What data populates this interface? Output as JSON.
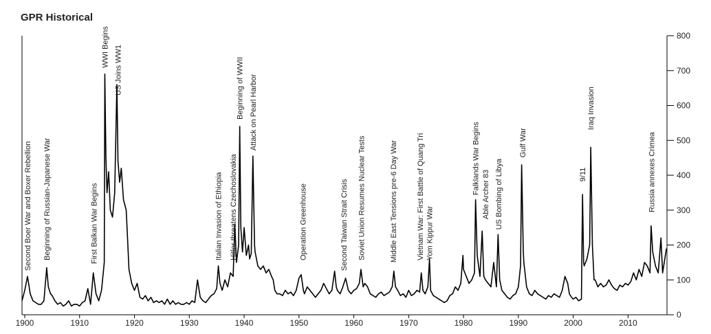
{
  "chart_data": {
    "type": "line",
    "title": "GPR Historical",
    "color": "#000000",
    "x": [
      1899.5,
      1900,
      1900.5,
      1901,
      1901.5,
      1902,
      1902.5,
      1903,
      1903.5,
      1904,
      1904.3,
      1904.7,
      1905,
      1905.5,
      1906,
      1906.5,
      1907,
      1907.5,
      1908,
      1908.5,
      1909,
      1909.5,
      1910,
      1910.5,
      1911,
      1911.5,
      1912,
      1912.5,
      1913,
      1913.5,
      1914,
      1914.5,
      1914.6,
      1914.8,
      1915,
      1915.3,
      1915.6,
      1916,
      1916.4,
      1916.8,
      1917,
      1917.3,
      1917.6,
      1918,
      1918.5,
      1918.8,
      1919,
      1919.5,
      1920,
      1920.5,
      1921,
      1921.5,
      1922,
      1922.5,
      1923,
      1923.5,
      1924,
      1924.5,
      1925,
      1925.5,
      1926,
      1926.5,
      1927,
      1927.5,
      1928,
      1928.5,
      1929,
      1929.5,
      1930,
      1930.5,
      1931,
      1931.5,
      1932,
      1932.5,
      1933,
      1933.5,
      1934,
      1934.5,
      1935,
      1935.3,
      1935.6,
      1936,
      1936.5,
      1937,
      1937.5,
      1938,
      1938.3,
      1938.6,
      1939,
      1939.2,
      1939.4,
      1939.7,
      1940,
      1940.4,
      1940.8,
      1941,
      1941.3,
      1941.6,
      1941.9,
      1942,
      1942.5,
      1943,
      1943.5,
      1944,
      1944.5,
      1945,
      1945.3,
      1945.6,
      1946,
      1946.5,
      1947,
      1947.5,
      1948,
      1948.5,
      1949,
      1949.5,
      1950,
      1950.4,
      1950.8,
      1951,
      1951.5,
      1952,
      1952.5,
      1953,
      1953.5,
      1954,
      1954.5,
      1955,
      1955.5,
      1956,
      1956.5,
      1956.8,
      1957,
      1957.5,
      1958,
      1958.5,
      1959,
      1959.5,
      1960,
      1960.5,
      1961,
      1961.3,
      1961.7,
      1962,
      1962.5,
      1963,
      1963.5,
      1964,
      1964.5,
      1965,
      1965.5,
      1966,
      1966.5,
      1967,
      1967.3,
      1967.6,
      1968,
      1968.5,
      1969,
      1969.5,
      1970,
      1970.5,
      1971,
      1971.5,
      1972,
      1972.3,
      1972.6,
      1973,
      1973.5,
      1973.8,
      1974,
      1974.5,
      1975,
      1975.5,
      1976,
      1976.5,
      1977,
      1977.5,
      1978,
      1978.5,
      1979,
      1979.5,
      1979.9,
      1980,
      1980.5,
      1981,
      1981.5,
      1982,
      1982.2,
      1982.5,
      1983,
      1983.4,
      1983.7,
      1984,
      1984.5,
      1985,
      1985.5,
      1986,
      1986.3,
      1986.6,
      1987,
      1987.5,
      1988,
      1988.5,
      1989,
      1989.5,
      1990,
      1990.4,
      1990.6,
      1990.9,
      1991,
      1991.5,
      1992,
      1992.5,
      1993,
      1993.5,
      1994,
      1994.5,
      1995,
      1995.5,
      1996,
      1996.5,
      1997,
      1997.5,
      1998,
      1998.5,
      1999,
      1999.3,
      1999.7,
      2000,
      2000.5,
      2001,
      2001.5,
      2001.7,
      2001.9,
      2002,
      2002.5,
      2003,
      2003.2,
      2003.5,
      2003.8,
      2004,
      2004.5,
      2005,
      2005.5,
      2006,
      2006.5,
      2007,
      2007.5,
      2008,
      2008.5,
      2009,
      2009.5,
      2010,
      2010.5,
      2011,
      2011.5,
      2012,
      2012.5,
      2013,
      2013.5,
      2014,
      2014.2,
      2014.5,
      2015,
      2015.5,
      2016,
      2016.3,
      2016.6,
      2017
    ],
    "values": [
      40,
      70,
      110,
      60,
      40,
      35,
      30,
      30,
      40,
      135,
      80,
      60,
      55,
      40,
      30,
      35,
      25,
      30,
      40,
      25,
      30,
      30,
      25,
      35,
      40,
      75,
      30,
      120,
      60,
      40,
      70,
      150,
      690,
      450,
      350,
      410,
      300,
      280,
      350,
      660,
      440,
      380,
      420,
      330,
      300,
      200,
      130,
      90,
      70,
      90,
      50,
      45,
      55,
      40,
      50,
      35,
      40,
      35,
      40,
      30,
      45,
      30,
      40,
      30,
      35,
      30,
      30,
      35,
      30,
      40,
      35,
      100,
      50,
      40,
      35,
      45,
      55,
      60,
      75,
      140,
      90,
      70,
      100,
      80,
      120,
      110,
      260,
      150,
      200,
      540,
      250,
      180,
      250,
      170,
      200,
      160,
      175,
      455,
      200,
      180,
      140,
      130,
      140,
      120,
      130,
      110,
      100,
      70,
      60,
      60,
      55,
      70,
      60,
      65,
      55,
      70,
      105,
      115,
      70,
      60,
      80,
      70,
      60,
      50,
      60,
      70,
      90,
      75,
      60,
      70,
      125,
      80,
      70,
      60,
      80,
      105,
      70,
      60,
      70,
      75,
      90,
      130,
      80,
      90,
      80,
      60,
      55,
      50,
      60,
      65,
      55,
      60,
      65,
      80,
      125,
      80,
      70,
      55,
      60,
      50,
      70,
      55,
      60,
      70,
      65,
      120,
      70,
      60,
      80,
      160,
      70,
      55,
      50,
      45,
      40,
      35,
      40,
      55,
      60,
      80,
      70,
      90,
      170,
      130,
      110,
      90,
      100,
      120,
      330,
      170,
      110,
      240,
      110,
      100,
      90,
      80,
      150,
      80,
      230,
      100,
      70,
      60,
      50,
      45,
      55,
      60,
      80,
      140,
      430,
      180,
      150,
      80,
      60,
      55,
      70,
      60,
      55,
      50,
      45,
      55,
      50,
      60,
      55,
      50,
      70,
      110,
      90,
      60,
      50,
      45,
      50,
      40,
      45,
      345,
      150,
      140,
      160,
      200,
      480,
      200,
      100,
      100,
      80,
      90,
      80,
      85,
      100,
      85,
      75,
      70,
      85,
      80,
      90,
      85,
      95,
      120,
      100,
      130,
      110,
      150,
      140,
      120,
      255,
      180,
      140,
      120,
      220,
      120,
      150,
      190
    ],
    "xlim": [
      1899.5,
      2017.1
    ],
    "xticks": [
      1900,
      1910,
      1920,
      1930,
      1940,
      1950,
      1960,
      1970,
      1980,
      1990,
      2000,
      2010
    ],
    "ylim": [
      0,
      800
    ],
    "yticks": [
      0,
      100,
      200,
      300,
      400,
      500,
      600,
      700,
      800
    ],
    "y_axis_side": "right",
    "annotations": [
      {
        "x": 1900.5,
        "y": 114,
        "label": "Second Boer War and Boxer Rebellion"
      },
      {
        "x": 1904,
        "y": 144,
        "label": "Beginning of Russian-Japanese War"
      },
      {
        "x": 1912.6,
        "y": 134,
        "label": "First Balkan War Begins"
      },
      {
        "x": 1914.6,
        "y": 696,
        "label": "WWI Begins"
      },
      {
        "x": 1917,
        "y": 617,
        "label": "US Joins WW1"
      },
      {
        "x": 1935.3,
        "y": 144,
        "label": "Italian Invasion of Ethiopia"
      },
      {
        "x": 1938,
        "y": 144,
        "label": "Hitler threatens Czechoslovakia"
      },
      {
        "x": 1939.2,
        "y": 548,
        "label": "Beginning of WWII"
      },
      {
        "x": 1941.6,
        "y": 459,
        "label": "Attack on Pearl Harbor"
      },
      {
        "x": 1950.7,
        "y": 144,
        "label": "Operation Greenhouse"
      },
      {
        "x": 1958.2,
        "y": 114,
        "label": "Second Taiwan Strait Crisis"
      },
      {
        "x": 1961.4,
        "y": 144,
        "label": "Soviet Union Resumes Nuclear Tests"
      },
      {
        "x": 1967.2,
        "y": 138,
        "label": "Middle East Tensions pre-6 Day War"
      },
      {
        "x": 1972.1,
        "y": 144,
        "label": "Vietnam War: First Battle of Quang Tri"
      },
      {
        "x": 1973.8,
        "y": 144,
        "label": "Yom Kippur War"
      },
      {
        "x": 1982.2,
        "y": 331,
        "label": "Falklands War Begins"
      },
      {
        "x": 1984,
        "y": 262,
        "label": "Able Archer 83"
      },
      {
        "x": 1986.4,
        "y": 232,
        "label": "US Bombing of Libya"
      },
      {
        "x": 1990.8,
        "y": 439,
        "label": "Gulf War"
      },
      {
        "x": 2001.7,
        "y": 370,
        "label": "9/11"
      },
      {
        "x": 2003.2,
        "y": 518,
        "label": "Iraq Invasion"
      },
      {
        "x": 2014.3,
        "y": 282,
        "label": "Russia annexes Crimea"
      }
    ]
  }
}
